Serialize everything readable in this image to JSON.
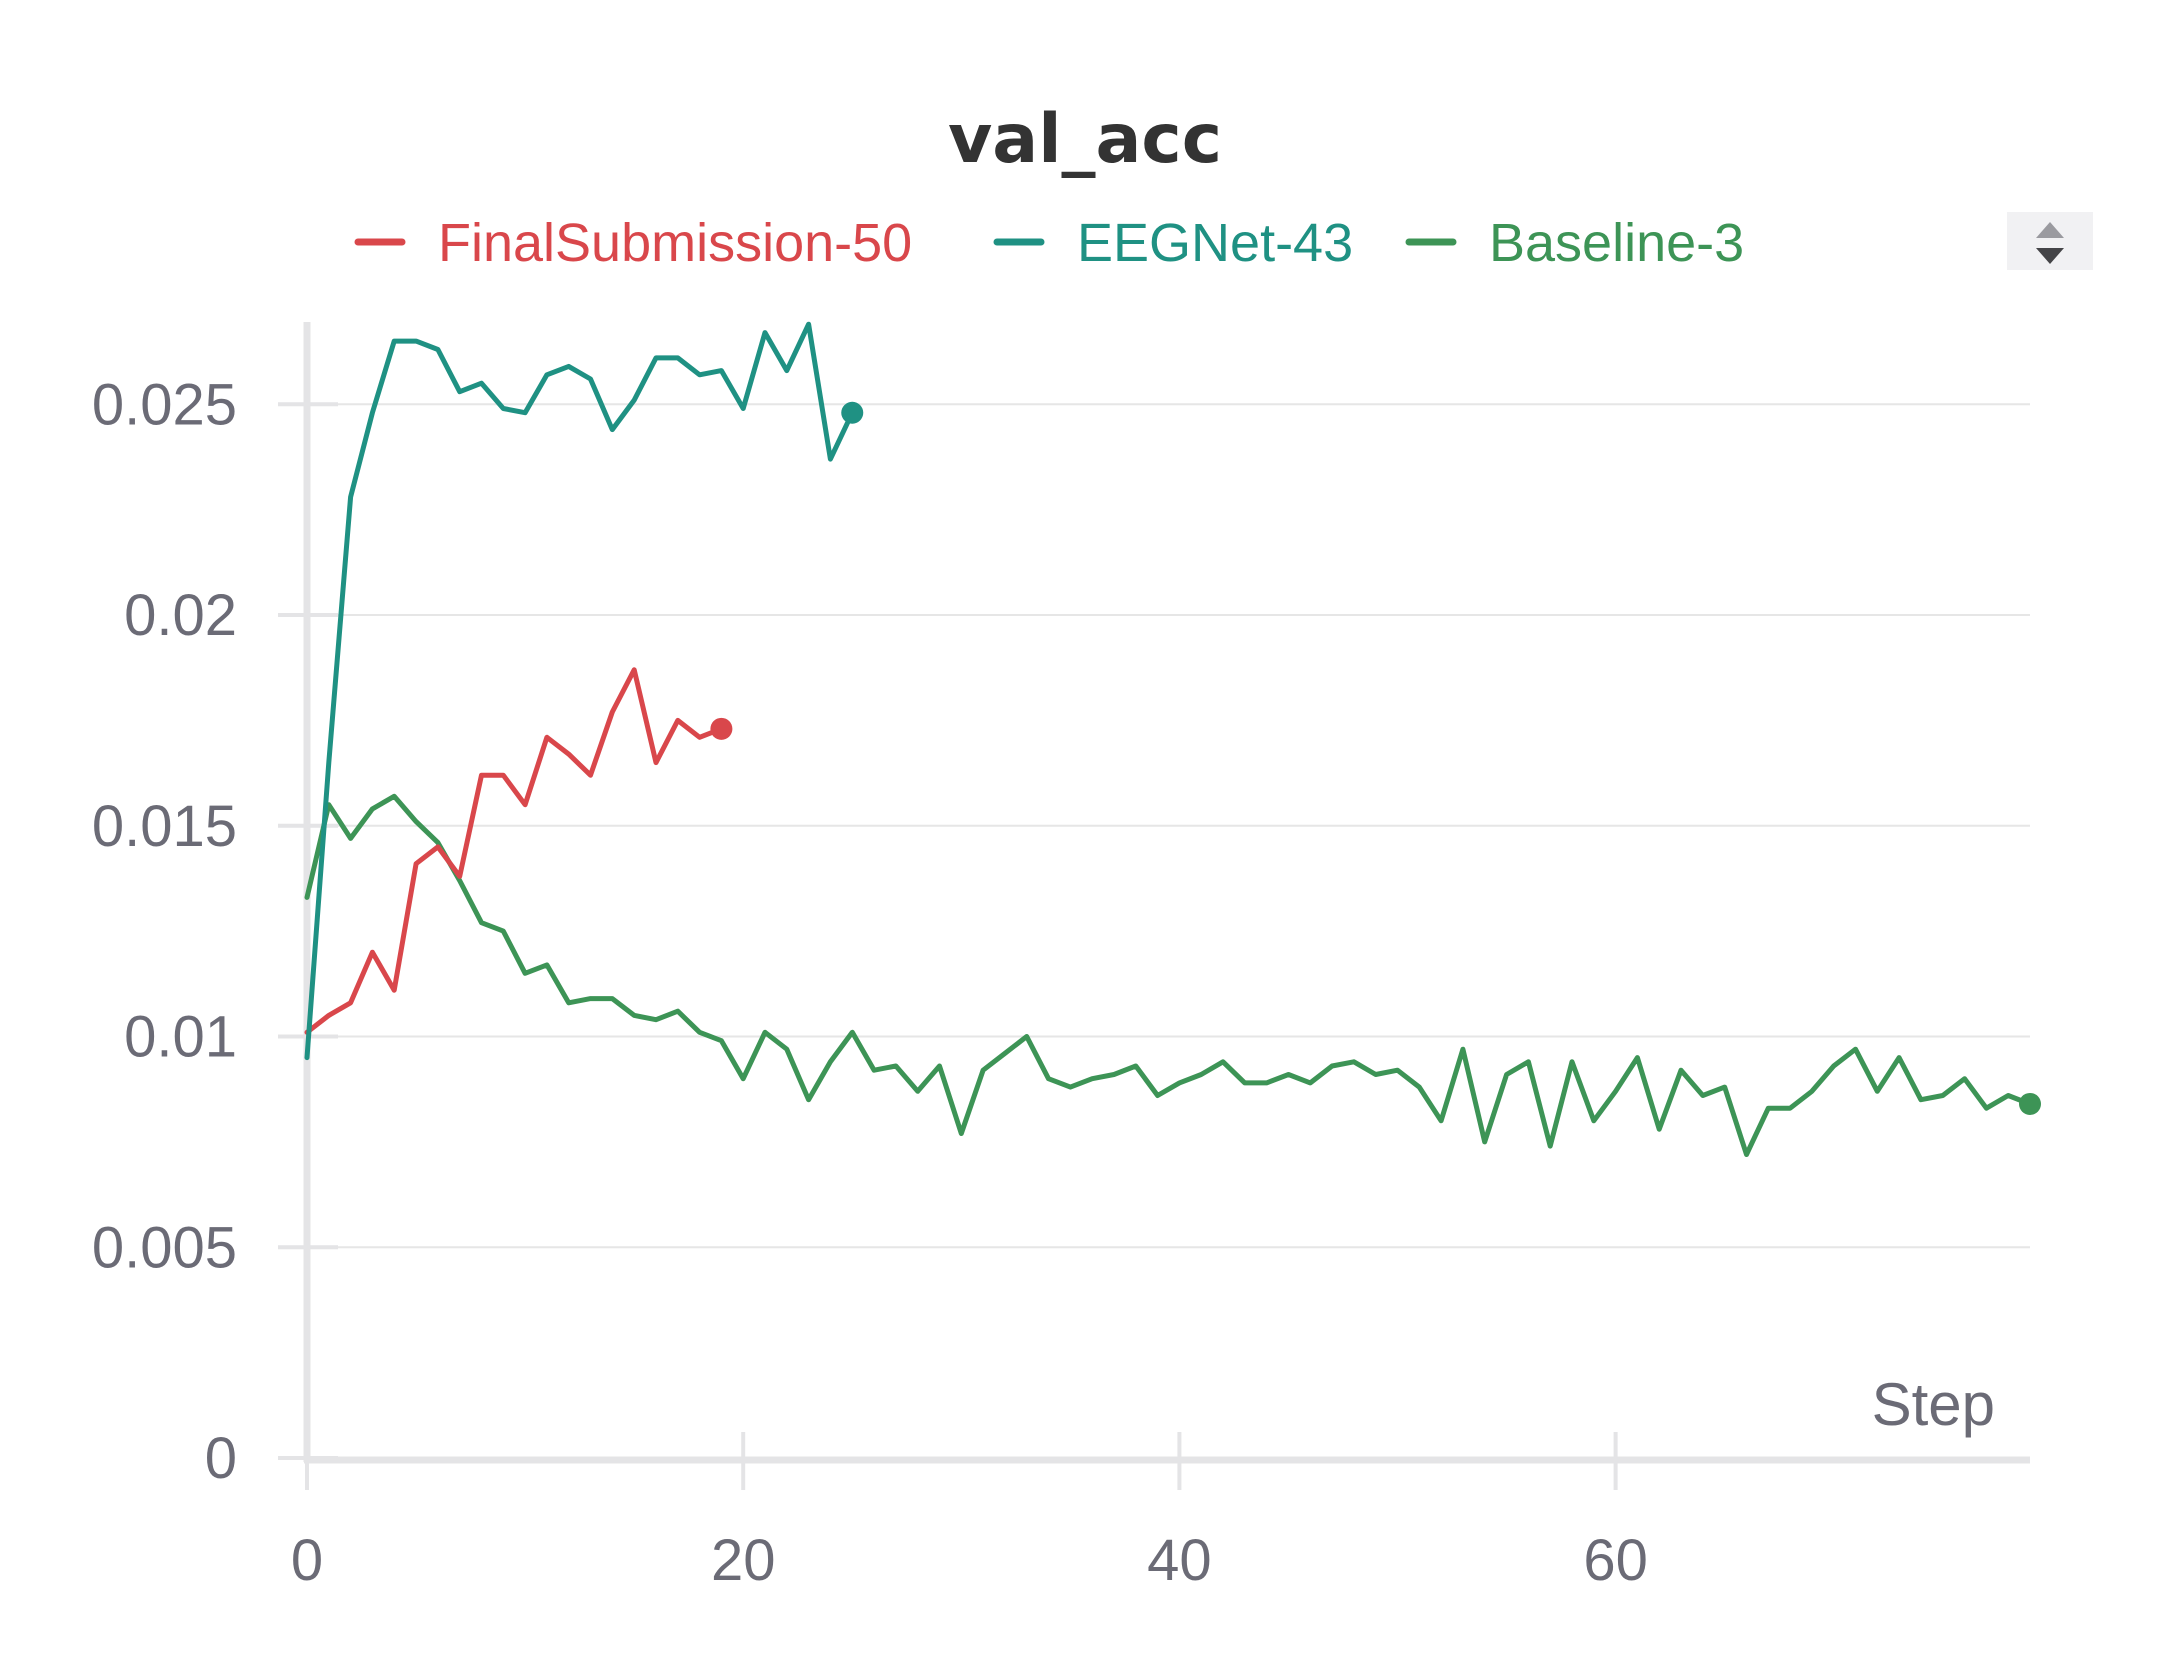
{
  "chart_data": {
    "type": "line",
    "title": "val_acc",
    "xlabel": "Step",
    "ylabel": "",
    "xlim": [
      0,
      79
    ],
    "ylim": [
      0,
      0.027
    ],
    "xticks": [
      0,
      20,
      40,
      60
    ],
    "yticks": [
      0,
      0.005,
      0.01,
      0.015,
      0.02,
      0.025
    ],
    "ytick_labels": [
      "0",
      "0.005",
      "0.01",
      "0.015",
      "0.02",
      "0.025"
    ],
    "xtick_labels": [
      "0",
      "20",
      "40",
      "60"
    ],
    "grid": true,
    "legend": "top",
    "series": [
      {
        "name": "FinalSubmission-50",
        "color": "#d9474b",
        "x": [
          0,
          1,
          2,
          3,
          4,
          5,
          6,
          7,
          8,
          9,
          10,
          11,
          12,
          13,
          14,
          15,
          16,
          17,
          18,
          19
        ],
        "y": [
          0.0101,
          0.0105,
          0.0108,
          0.012,
          0.0111,
          0.0141,
          0.0145,
          0.0138,
          0.0162,
          0.0162,
          0.0155,
          0.0171,
          0.0167,
          0.0162,
          0.0177,
          0.0187,
          0.0165,
          0.0175,
          0.0171,
          0.0173
        ]
      },
      {
        "name": "EEGNet-43",
        "color": "#1f9183",
        "x": [
          0,
          1,
          2,
          3,
          4,
          5,
          6,
          7,
          8,
          9,
          10,
          11,
          12,
          13,
          14,
          15,
          16,
          17,
          18,
          19,
          20,
          21,
          22,
          23,
          24,
          25
        ],
        "y": [
          0.0095,
          0.0165,
          0.0228,
          0.0248,
          0.0265,
          0.0265,
          0.0263,
          0.0253,
          0.0255,
          0.0249,
          0.0248,
          0.0257,
          0.0259,
          0.0256,
          0.0244,
          0.0251,
          0.0261,
          0.0261,
          0.0257,
          0.0258,
          0.0249,
          0.0267,
          0.0258,
          0.0269,
          0.0237,
          0.0248
        ]
      },
      {
        "name": "Baseline-3",
        "color": "#3d9456",
        "x": [
          0,
          1,
          2,
          3,
          4,
          5,
          6,
          7,
          8,
          9,
          10,
          11,
          12,
          13,
          14,
          15,
          16,
          17,
          18,
          19,
          20,
          21,
          22,
          23,
          24,
          25,
          26,
          27,
          28,
          29,
          30,
          31,
          32,
          33,
          34,
          35,
          36,
          37,
          38,
          39,
          40,
          41,
          42,
          43,
          44,
          45,
          46,
          47,
          48,
          49,
          50,
          51,
          52,
          53,
          54,
          55,
          56,
          57,
          58,
          59,
          60,
          61,
          62,
          63,
          64,
          65,
          66,
          67,
          68,
          69,
          70,
          71,
          72,
          73,
          74,
          75,
          76,
          77,
          78,
          79
        ],
        "y": [
          0.0133,
          0.0155,
          0.0147,
          0.0154,
          0.0157,
          0.0151,
          0.0146,
          0.0137,
          0.0127,
          0.0125,
          0.0115,
          0.0117,
          0.0108,
          0.0109,
          0.0109,
          0.0105,
          0.0104,
          0.0106,
          0.0101,
          0.0099,
          0.009,
          0.0101,
          0.0097,
          0.0085,
          0.0094,
          0.0101,
          0.0092,
          0.0093,
          0.0087,
          0.0093,
          0.0077,
          0.0092,
          0.0096,
          0.01,
          0.009,
          0.0088,
          0.009,
          0.0091,
          0.0093,
          0.0086,
          0.0089,
          0.0091,
          0.0094,
          0.0089,
          0.0089,
          0.0091,
          0.0089,
          0.0093,
          0.0094,
          0.0091,
          0.0092,
          0.0088,
          0.008,
          0.0097,
          0.0075,
          0.0091,
          0.0094,
          0.0074,
          0.0094,
          0.008,
          0.0087,
          0.0095,
          0.0078,
          0.0092,
          0.0086,
          0.0088,
          0.0072,
          0.0083,
          0.0083,
          0.0087,
          0.0093,
          0.0097,
          0.0087,
          0.0095,
          0.0085,
          0.0086,
          0.009,
          0.0083,
          0.0086,
          0.0084
        ]
      }
    ]
  },
  "legend_scroll_icon": "sort-arrows-icon"
}
